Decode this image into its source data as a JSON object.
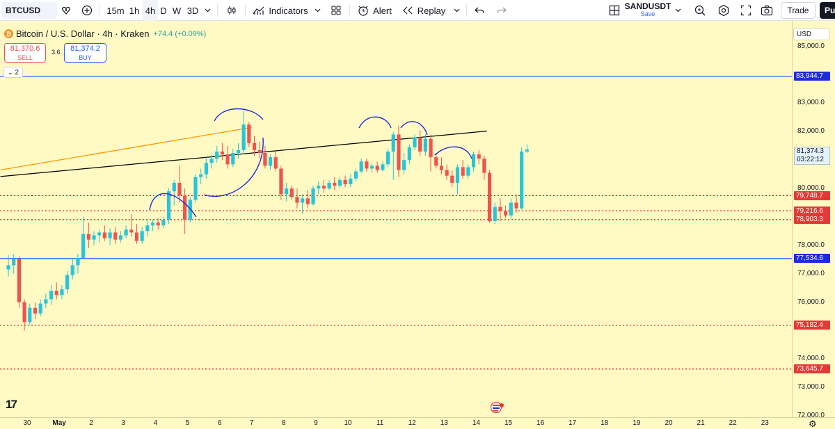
{
  "toolbar": {
    "symbol": "BTCUSD",
    "intervals": [
      "15m",
      "1h",
      "4h",
      "D",
      "W",
      "3D"
    ],
    "active_interval": "4h",
    "indicators_label": "Indicators",
    "alert_label": "Alert",
    "replay_label": "Replay",
    "layout_name": "SANDUSDT",
    "layout_save": "Save",
    "trade_label": "Trade",
    "publish_label": "Pu",
    "icons": [
      "heart-shield-icon",
      "add-circle-icon",
      "chevron-down-icon",
      "candles-icon",
      "indicators-icon",
      "templates-icon",
      "alarm-icon",
      "replay-icon",
      "undo-icon",
      "redo-icon",
      "layout-icon",
      "magnify-icon",
      "gear-icon",
      "fullscreen-icon",
      "camera-icon"
    ]
  },
  "legend": {
    "title": "Bitcoin / U.S. Dollar · 4h · Kraken",
    "change": "+74.4 (+0.09%)",
    "sell_price": "81,370.6",
    "sell_label": "SELL",
    "spread": "3.6",
    "buy_price": "81,374.2",
    "buy_label": "BUY",
    "indicator_count": "2"
  },
  "price_axis": {
    "currency": "USD",
    "last_price": "81,374.3",
    "countdown": "03:22:12"
  },
  "colors": {
    "background": "#fff9c4",
    "up": "#26c6da",
    "down": "#ef5350",
    "blue_line": "#2962ff",
    "orange_line": "#ff9800",
    "black_line": "#000000",
    "red_dotted": "#ff0000"
  },
  "chart_data": {
    "type": "candlestick",
    "symbol": "BTCUSD",
    "interval": "4h",
    "ylim": [
      71950,
      85900
    ],
    "y_ticks": [
      85000,
      83000,
      82000,
      81000,
      80000,
      79000,
      78000,
      77000,
      76000,
      74000,
      73000,
      72000
    ],
    "y_tick_labels": [
      "85,000.0",
      "83,000.0",
      "82,000.0",
      "81,000.0",
      "80,000.0",
      "79,000.0",
      "78,000.0",
      "77,000.0",
      "76,000.0",
      "74,000.0",
      "73,000.0",
      "72,000.0"
    ],
    "x_labels": [
      "30",
      "May",
      "2",
      "3",
      "4",
      "5",
      "6",
      "7",
      "8",
      "9",
      "10",
      "11",
      "12",
      "13",
      "14",
      "15",
      "16",
      "17",
      "18",
      "19",
      "20",
      "21",
      "22",
      "23"
    ],
    "horizontal_levels": [
      {
        "price": 83944.7,
        "label": "83,944.7",
        "style": "solid",
        "color": "#2962ff"
      },
      {
        "price": 77534.6,
        "label": "77,534.6",
        "style": "solid",
        "color": "#2962ff"
      },
      {
        "price": 79748.7,
        "label": "79,748.7",
        "style": "dotted",
        "color": "#ff0000"
      },
      {
        "price": 79216.6,
        "label": "79,216.6",
        "style": "dotted",
        "color": "#ff0000"
      },
      {
        "price": 78903.3,
        "label": "78,903.3",
        "style": "dotted",
        "color": "#ff0000"
      },
      {
        "price": 75182.4,
        "label": "75,182.4",
        "style": "dotted",
        "color": "#ff0000"
      },
      {
        "price": 73645.7,
        "label": "73,645.7",
        "style": "dotted",
        "color": "#ff0000"
      }
    ],
    "trend_lines": [
      {
        "from": [
          "Apr 29 00:00",
          80650
        ],
        "to": [
          "May 6 20:00",
          82150
        ],
        "color": "#ff9800"
      },
      {
        "from": [
          "Apr 29 00:00",
          80420
        ],
        "to": [
          "May 14 04:00",
          82020
        ],
        "color": "#000000"
      }
    ],
    "candles": [
      {
        "t": "Apr 29 04:00",
        "o": 77150,
        "h": 77650,
        "l": 76900,
        "c": 77300
      },
      {
        "t": "Apr 29 08:00",
        "o": 77300,
        "h": 77700,
        "l": 77000,
        "c": 77520
      },
      {
        "t": "Apr 29 12:00",
        "o": 77520,
        "h": 77600,
        "l": 75800,
        "c": 76000
      },
      {
        "t": "Apr 29 16:00",
        "o": 76000,
        "h": 76100,
        "l": 75000,
        "c": 75300
      },
      {
        "t": "Apr 29 20:00",
        "o": 75300,
        "h": 75950,
        "l": 75200,
        "c": 75800
      },
      {
        "t": "Apr 30 00:00",
        "o": 75800,
        "h": 76000,
        "l": 75400,
        "c": 75600
      },
      {
        "t": "Apr 30 04:00",
        "o": 75600,
        "h": 76100,
        "l": 75500,
        "c": 75950
      },
      {
        "t": "Apr 30 08:00",
        "o": 75950,
        "h": 76300,
        "l": 75800,
        "c": 76100
      },
      {
        "t": "Apr 30 12:00",
        "o": 76100,
        "h": 76600,
        "l": 75900,
        "c": 76400
      },
      {
        "t": "Apr 30 16:00",
        "o": 76400,
        "h": 76700,
        "l": 76100,
        "c": 76250
      },
      {
        "t": "Apr 30 20:00",
        "o": 76250,
        "h": 76600,
        "l": 76100,
        "c": 76450
      },
      {
        "t": "May 1 00:00",
        "o": 76450,
        "h": 77100,
        "l": 76300,
        "c": 76950
      },
      {
        "t": "May 1 04:00",
        "o": 76950,
        "h": 77500,
        "l": 76800,
        "c": 77300
      },
      {
        "t": "May 1 08:00",
        "o": 77300,
        "h": 77700,
        "l": 77000,
        "c": 77550
      },
      {
        "t": "May 1 12:00",
        "o": 77550,
        "h": 79000,
        "l": 77500,
        "c": 78400
      },
      {
        "t": "May 1 16:00",
        "o": 78400,
        "h": 78800,
        "l": 77900,
        "c": 78200
      },
      {
        "t": "May 1 20:00",
        "o": 78200,
        "h": 78500,
        "l": 78000,
        "c": 78350
      },
      {
        "t": "May 2 00:00",
        "o": 78350,
        "h": 78550,
        "l": 78100,
        "c": 78450
      },
      {
        "t": "May 2 04:00",
        "o": 78450,
        "h": 78700,
        "l": 78150,
        "c": 78250
      },
      {
        "t": "May 2 08:00",
        "o": 78250,
        "h": 78600,
        "l": 78000,
        "c": 78450
      },
      {
        "t": "May 2 12:00",
        "o": 78450,
        "h": 78650,
        "l": 78050,
        "c": 78200
      },
      {
        "t": "May 2 16:00",
        "o": 78200,
        "h": 78500,
        "l": 78100,
        "c": 78350
      },
      {
        "t": "May 2 20:00",
        "o": 78350,
        "h": 78700,
        "l": 78250,
        "c": 78550
      },
      {
        "t": "May 3 00:00",
        "o": 78550,
        "h": 79100,
        "l": 78300,
        "c": 78450
      },
      {
        "t": "May 3 04:00",
        "o": 78450,
        "h": 78750,
        "l": 78050,
        "c": 78150
      },
      {
        "t": "May 3 08:00",
        "o": 78150,
        "h": 78650,
        "l": 78050,
        "c": 78500
      },
      {
        "t": "May 3 12:00",
        "o": 78500,
        "h": 78900,
        "l": 78300,
        "c": 78700
      },
      {
        "t": "May 3 16:00",
        "o": 78700,
        "h": 78900,
        "l": 78500,
        "c": 78800
      },
      {
        "t": "May 3 20:00",
        "o": 78800,
        "h": 78950,
        "l": 78550,
        "c": 78700
      },
      {
        "t": "May 4 00:00",
        "o": 78700,
        "h": 79000,
        "l": 78600,
        "c": 78900
      },
      {
        "t": "May 4 04:00",
        "o": 78900,
        "h": 80000,
        "l": 78750,
        "c": 79900
      },
      {
        "t": "May 4 08:00",
        "o": 79900,
        "h": 80300,
        "l": 79400,
        "c": 80200
      },
      {
        "t": "May 4 12:00",
        "o": 80200,
        "h": 80800,
        "l": 79500,
        "c": 79750
      },
      {
        "t": "May 4 16:00",
        "o": 79750,
        "h": 80000,
        "l": 78400,
        "c": 78900
      },
      {
        "t": "May 4 20:00",
        "o": 78900,
        "h": 79700,
        "l": 78800,
        "c": 79600
      },
      {
        "t": "May 5 00:00",
        "o": 79600,
        "h": 80500,
        "l": 79500,
        "c": 80400
      },
      {
        "t": "May 5 04:00",
        "o": 80400,
        "h": 80700,
        "l": 80150,
        "c": 80500
      },
      {
        "t": "May 5 08:00",
        "o": 80500,
        "h": 81100,
        "l": 80350,
        "c": 80900
      },
      {
        "t": "May 5 12:00",
        "o": 80900,
        "h": 81200,
        "l": 80700,
        "c": 81050
      },
      {
        "t": "May 5 16:00",
        "o": 81050,
        "h": 81500,
        "l": 80900,
        "c": 81300
      },
      {
        "t": "May 5 20:00",
        "o": 81300,
        "h": 81600,
        "l": 81000,
        "c": 81200
      },
      {
        "t": "May 6 00:00",
        "o": 81200,
        "h": 81500,
        "l": 80700,
        "c": 80850
      },
      {
        "t": "May 6 04:00",
        "o": 80850,
        "h": 81400,
        "l": 80750,
        "c": 81250
      },
      {
        "t": "May 6 08:00",
        "o": 81250,
        "h": 81600,
        "l": 81050,
        "c": 81350
      },
      {
        "t": "May 6 12:00",
        "o": 81350,
        "h": 82750,
        "l": 81200,
        "c": 82250
      },
      {
        "t": "May 6 16:00",
        "o": 82250,
        "h": 82350,
        "l": 81450,
        "c": 81600
      },
      {
        "t": "May 6 20:00",
        "o": 81600,
        "h": 81850,
        "l": 81150,
        "c": 81350
      },
      {
        "t": "May 7 00:00",
        "o": 81350,
        "h": 81650,
        "l": 81050,
        "c": 81250
      },
      {
        "t": "May 7 04:00",
        "o": 81250,
        "h": 81500,
        "l": 80700,
        "c": 80800
      },
      {
        "t": "May 7 08:00",
        "o": 80800,
        "h": 81200,
        "l": 80650,
        "c": 81100
      },
      {
        "t": "May 7 12:00",
        "o": 81100,
        "h": 81300,
        "l": 80600,
        "c": 80700
      },
      {
        "t": "May 7 16:00",
        "o": 80700,
        "h": 80800,
        "l": 79600,
        "c": 79800
      },
      {
        "t": "May 7 20:00",
        "o": 79800,
        "h": 80200,
        "l": 79550,
        "c": 80000
      },
      {
        "t": "May 8 00:00",
        "o": 80000,
        "h": 80100,
        "l": 79600,
        "c": 79700
      },
      {
        "t": "May 8 04:00",
        "o": 79700,
        "h": 80000,
        "l": 79300,
        "c": 79500
      },
      {
        "t": "May 8 08:00",
        "o": 79500,
        "h": 79800,
        "l": 79100,
        "c": 79650
      },
      {
        "t": "May 8 12:00",
        "o": 79650,
        "h": 79950,
        "l": 79300,
        "c": 79450
      },
      {
        "t": "May 8 16:00",
        "o": 79450,
        "h": 80100,
        "l": 79400,
        "c": 80000
      },
      {
        "t": "May 8 20:00",
        "o": 80000,
        "h": 80250,
        "l": 79800,
        "c": 80100
      },
      {
        "t": "May 9 00:00",
        "o": 80100,
        "h": 80300,
        "l": 79850,
        "c": 80000
      },
      {
        "t": "May 9 04:00",
        "o": 80000,
        "h": 80300,
        "l": 79950,
        "c": 80200
      },
      {
        "t": "May 9 08:00",
        "o": 80200,
        "h": 80400,
        "l": 79950,
        "c": 80100
      },
      {
        "t": "May 9 12:00",
        "o": 80100,
        "h": 80400,
        "l": 80000,
        "c": 80300
      },
      {
        "t": "May 9 16:00",
        "o": 80300,
        "h": 80450,
        "l": 80050,
        "c": 80150
      },
      {
        "t": "May 9 20:00",
        "o": 80150,
        "h": 80500,
        "l": 80050,
        "c": 80350
      },
      {
        "t": "May 10 00:00",
        "o": 80350,
        "h": 80700,
        "l": 80250,
        "c": 80600
      },
      {
        "t": "May 10 04:00",
        "o": 80600,
        "h": 81050,
        "l": 80550,
        "c": 80950
      },
      {
        "t": "May 10 08:00",
        "o": 80950,
        "h": 81050,
        "l": 80600,
        "c": 80700
      },
      {
        "t": "May 10 12:00",
        "o": 80700,
        "h": 80900,
        "l": 80550,
        "c": 80800
      },
      {
        "t": "May 10 16:00",
        "o": 80800,
        "h": 80950,
        "l": 80550,
        "c": 80650
      },
      {
        "t": "May 10 20:00",
        "o": 80650,
        "h": 80950,
        "l": 80600,
        "c": 80850
      },
      {
        "t": "May 11 00:00",
        "o": 80850,
        "h": 81400,
        "l": 80750,
        "c": 81300
      },
      {
        "t": "May 11 04:00",
        "o": 81300,
        "h": 82000,
        "l": 80300,
        "c": 81900
      },
      {
        "t": "May 11 08:00",
        "o": 81900,
        "h": 82200,
        "l": 80400,
        "c": 80650
      },
      {
        "t": "May 11 12:00",
        "o": 80650,
        "h": 81250,
        "l": 80500,
        "c": 81000
      },
      {
        "t": "May 11 16:00",
        "o": 81000,
        "h": 81550,
        "l": 80850,
        "c": 81450
      },
      {
        "t": "May 11 20:00",
        "o": 81450,
        "h": 81900,
        "l": 81350,
        "c": 81800
      },
      {
        "t": "May 12 00:00",
        "o": 81800,
        "h": 82050,
        "l": 81150,
        "c": 81300
      },
      {
        "t": "May 12 04:00",
        "o": 81300,
        "h": 81900,
        "l": 81150,
        "c": 81750
      },
      {
        "t": "May 12 08:00",
        "o": 81750,
        "h": 81900,
        "l": 80600,
        "c": 81100
      },
      {
        "t": "May 12 12:00",
        "o": 81100,
        "h": 81250,
        "l": 80700,
        "c": 80800
      },
      {
        "t": "May 12 16:00",
        "o": 80800,
        "h": 81100,
        "l": 80500,
        "c": 80650
      },
      {
        "t": "May 12 20:00",
        "o": 80650,
        "h": 80850,
        "l": 80300,
        "c": 80450
      },
      {
        "t": "May 13 00:00",
        "o": 80450,
        "h": 80650,
        "l": 80050,
        "c": 80200
      },
      {
        "t": "May 13 04:00",
        "o": 80200,
        "h": 80850,
        "l": 79800,
        "c": 80750
      },
      {
        "t": "May 13 08:00",
        "o": 80750,
        "h": 81000,
        "l": 80350,
        "c": 80450
      },
      {
        "t": "May 13 12:00",
        "o": 80450,
        "h": 80850,
        "l": 80350,
        "c": 80750
      },
      {
        "t": "May 13 16:00",
        "o": 80750,
        "h": 81300,
        "l": 80600,
        "c": 81200
      },
      {
        "t": "May 13 20:00",
        "o": 81200,
        "h": 81350,
        "l": 80850,
        "c": 81050
      },
      {
        "t": "May 14 00:00",
        "o": 81050,
        "h": 81150,
        "l": 80300,
        "c": 80550
      },
      {
        "t": "May 14 04:00",
        "o": 80550,
        "h": 80650,
        "l": 78800,
        "c": 78850
      },
      {
        "t": "May 14 08:00",
        "o": 78850,
        "h": 79500,
        "l": 78750,
        "c": 79350
      },
      {
        "t": "May 14 12:00",
        "o": 79350,
        "h": 79650,
        "l": 78850,
        "c": 79200
      },
      {
        "t": "May 14 16:00",
        "o": 79200,
        "h": 79400,
        "l": 78950,
        "c": 79050
      },
      {
        "t": "May 14 20:00",
        "o": 79050,
        "h": 79650,
        "l": 78950,
        "c": 79500
      },
      {
        "t": "May 15 00:00",
        "o": 79500,
        "h": 79800,
        "l": 79150,
        "c": 79300
      },
      {
        "t": "May 15 04:00",
        "o": 79300,
        "h": 81450,
        "l": 79250,
        "c": 81300
      },
      {
        "t": "May 15 08:00",
        "o": 81300,
        "h": 81550,
        "l": 81250,
        "c": 81374
      }
    ]
  }
}
